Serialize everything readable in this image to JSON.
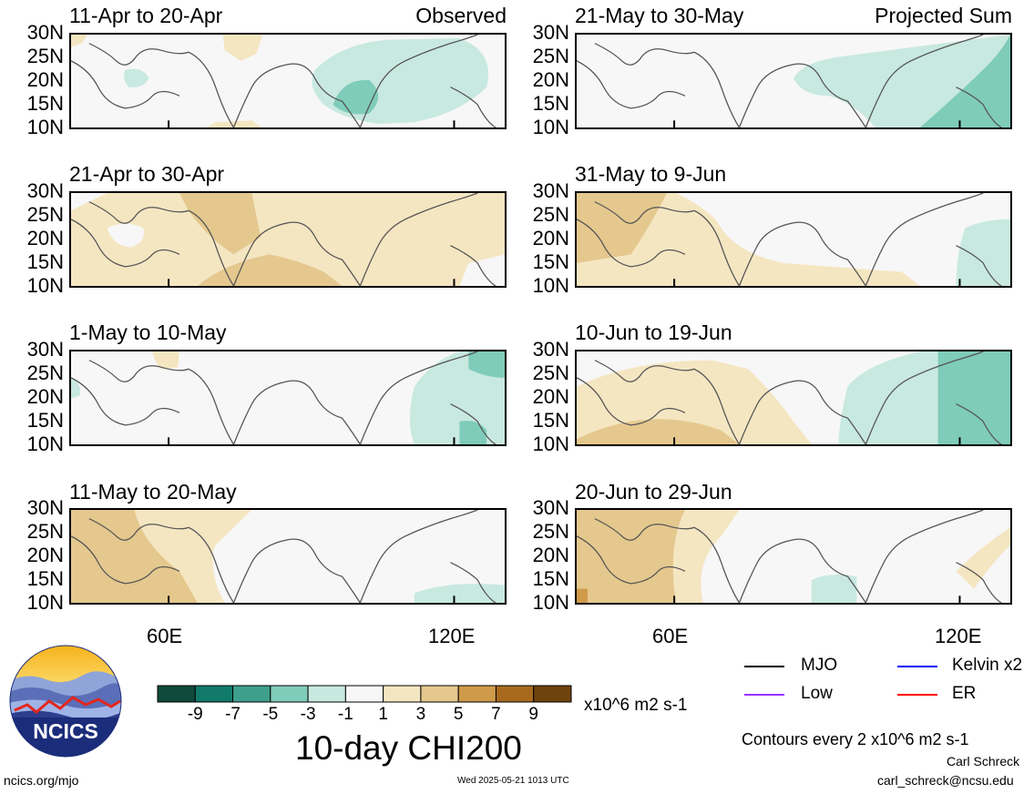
{
  "panels": [
    {
      "title": "11-Apr to 20-Apr",
      "tag": "Observed",
      "col": 0,
      "row": 0
    },
    {
      "title": "21-Apr to 30-Apr",
      "tag": "",
      "col": 0,
      "row": 1
    },
    {
      "title": "1-May to 10-May",
      "tag": "",
      "col": 0,
      "row": 2
    },
    {
      "title": "11-May to 20-May",
      "tag": "",
      "col": 0,
      "row": 3
    },
    {
      "title": "21-May to 30-May",
      "tag": "Projected Sum",
      "col": 1,
      "row": 0
    },
    {
      "title": "31-May to 9-Jun",
      "tag": "",
      "col": 1,
      "row": 1
    },
    {
      "title": "10-Jun to 19-Jun",
      "tag": "",
      "col": 1,
      "row": 2
    },
    {
      "title": "20-Jun to 29-Jun",
      "tag": "",
      "col": 1,
      "row": 3
    }
  ],
  "lat_labels": [
    "30N",
    "25N",
    "20N",
    "15N",
    "10N"
  ],
  "lon_labels": [
    "60E",
    "120E"
  ],
  "colorbar": {
    "colors": [
      "#0f4a3c",
      "#127a6a",
      "#3e9f8c",
      "#7fccba",
      "#c8e9e0",
      "#f7f7f7",
      "#f5e6c2",
      "#e4c88e",
      "#cf9a4a",
      "#a86a1e",
      "#6f430c"
    ],
    "tick_labels": [
      "-9",
      "-7",
      "-5",
      "-3",
      "-1",
      "1",
      "3",
      "5",
      "7",
      "9"
    ],
    "units": "x10^6 m2 s-1"
  },
  "main_title": "10-day CHI200",
  "legend": [
    {
      "label": "MJO",
      "color": "#000000"
    },
    {
      "label": "Kelvin x2",
      "color": "#0000ff"
    },
    {
      "label": "Low",
      "color": "#9b30ff"
    },
    {
      "label": "ER",
      "color": "#ff0000"
    }
  ],
  "contour_note": "Contours every 2 x10^6 m2 s-1",
  "author": "Carl Schreck",
  "email": "carl_schreck@ncsu.edu",
  "site": "ncics.org/mjo",
  "timestamp": "Wed 2025-05-21 1013 UTC",
  "logo_text": "NCICS"
}
